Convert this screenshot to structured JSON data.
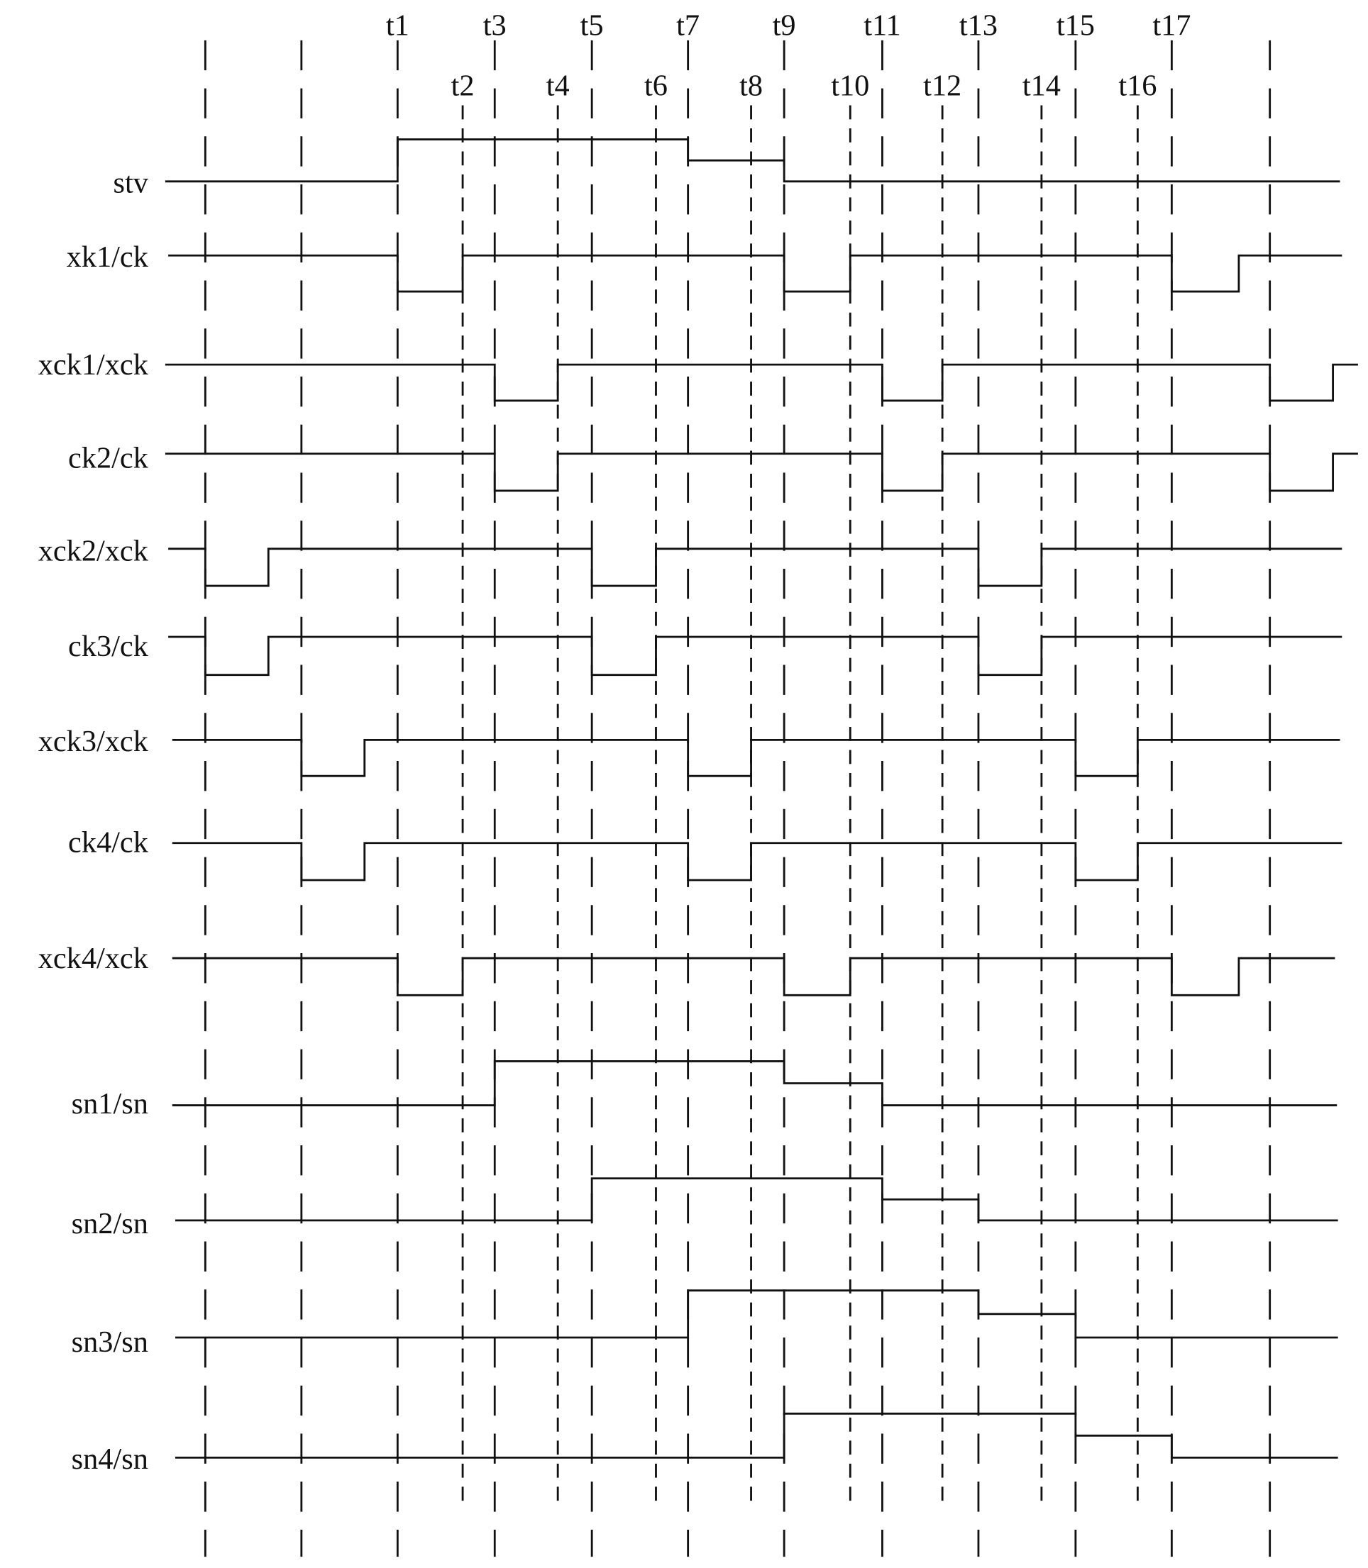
{
  "diagram": {
    "type": "timing-diagram",
    "line_color": "#111111",
    "background": "#ffffff",
    "time_labels": [
      "t1",
      "t2",
      "t3",
      "t4",
      "t5",
      "t6",
      "t7",
      "t8",
      "t9",
      "t10",
      "t11",
      "t12",
      "t13",
      "t14",
      "t15",
      "t16",
      "t17"
    ],
    "signals": [
      {
        "name": "stv",
        "initial": "low",
        "transitions": [
          {
            "at": "t1",
            "level": "high"
          },
          {
            "at": "t7",
            "level": "mid"
          },
          {
            "at": "t9",
            "level": "low"
          }
        ]
      },
      {
        "name": "xk1/ck",
        "initial": "high",
        "transitions": [
          {
            "at": "t1",
            "level": "low"
          },
          {
            "at": "t2",
            "level": "high"
          },
          {
            "at": "t9",
            "level": "low"
          },
          {
            "at": "t10",
            "level": "high"
          },
          {
            "at": "t17",
            "level": "low"
          },
          {
            "at": "t17+",
            "level": "high"
          }
        ]
      },
      {
        "name": "xck1/xck",
        "initial": "high",
        "transitions": [
          {
            "at": "t3",
            "level": "low"
          },
          {
            "at": "t4",
            "level": "high"
          },
          {
            "at": "t11",
            "level": "low"
          },
          {
            "at": "t12",
            "level": "high"
          },
          {
            "at": "post",
            "level": "low"
          },
          {
            "at": "post+",
            "level": "high"
          }
        ]
      },
      {
        "name": "ck2/ck",
        "initial": "high",
        "transitions": [
          {
            "at": "t3",
            "level": "low"
          },
          {
            "at": "t4",
            "level": "high"
          },
          {
            "at": "t11",
            "level": "low"
          },
          {
            "at": "t12",
            "level": "high"
          },
          {
            "at": "post",
            "level": "low"
          },
          {
            "at": "post+",
            "level": "high"
          }
        ]
      },
      {
        "name": "xck2/xck",
        "initial": "high",
        "transitions": [
          {
            "at": "pre1",
            "level": "low"
          },
          {
            "at": "pre1+",
            "level": "high"
          },
          {
            "at": "t5",
            "level": "low"
          },
          {
            "at": "t6",
            "level": "high"
          },
          {
            "at": "t13",
            "level": "low"
          },
          {
            "at": "t14",
            "level": "high"
          }
        ]
      },
      {
        "name": "ck3/ck",
        "initial": "high",
        "transitions": [
          {
            "at": "pre1",
            "level": "low"
          },
          {
            "at": "pre1+",
            "level": "high"
          },
          {
            "at": "t5",
            "level": "low"
          },
          {
            "at": "t6",
            "level": "high"
          },
          {
            "at": "t13",
            "level": "low"
          },
          {
            "at": "t14",
            "level": "high"
          }
        ]
      },
      {
        "name": "xck3/xck",
        "initial": "high",
        "transitions": [
          {
            "at": "pre2",
            "level": "low"
          },
          {
            "at": "pre2+",
            "level": "high"
          },
          {
            "at": "t7",
            "level": "low"
          },
          {
            "at": "t8",
            "level": "high"
          },
          {
            "at": "t15",
            "level": "low"
          },
          {
            "at": "t16",
            "level": "high"
          }
        ]
      },
      {
        "name": "ck4/ck",
        "initial": "high",
        "transitions": [
          {
            "at": "pre2",
            "level": "low"
          },
          {
            "at": "pre2+",
            "level": "high"
          },
          {
            "at": "t7",
            "level": "low"
          },
          {
            "at": "t8",
            "level": "high"
          },
          {
            "at": "t15",
            "level": "low"
          },
          {
            "at": "t16",
            "level": "high"
          }
        ]
      },
      {
        "name": "xck4/xck",
        "initial": "high",
        "transitions": [
          {
            "at": "t1",
            "level": "low"
          },
          {
            "at": "t2",
            "level": "high"
          },
          {
            "at": "t9",
            "level": "low"
          },
          {
            "at": "t10",
            "level": "high"
          },
          {
            "at": "t17",
            "level": "low"
          },
          {
            "at": "t17+",
            "level": "high"
          }
        ]
      },
      {
        "name": "sn1/sn",
        "initial": "low",
        "transitions": [
          {
            "at": "t3",
            "level": "high"
          },
          {
            "at": "t9",
            "level": "mid"
          },
          {
            "at": "t11",
            "level": "low"
          }
        ]
      },
      {
        "name": "sn2/sn",
        "initial": "low",
        "transitions": [
          {
            "at": "t5",
            "level": "high"
          },
          {
            "at": "t11",
            "level": "mid"
          },
          {
            "at": "t13",
            "level": "low"
          }
        ]
      },
      {
        "name": "sn3/sn",
        "initial": "low",
        "transitions": [
          {
            "at": "t7",
            "level": "high"
          },
          {
            "at": "t13",
            "level": "mid"
          },
          {
            "at": "t15",
            "level": "low"
          }
        ]
      },
      {
        "name": "sn4/sn",
        "initial": "low",
        "transitions": [
          {
            "at": "t9",
            "level": "high"
          },
          {
            "at": "t15",
            "level": "mid"
          },
          {
            "at": "t17",
            "level": "low"
          }
        ]
      }
    ]
  }
}
